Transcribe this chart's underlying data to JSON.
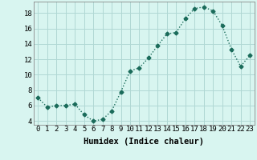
{
  "x": [
    0,
    1,
    2,
    3,
    4,
    5,
    6,
    7,
    8,
    9,
    10,
    11,
    12,
    13,
    14,
    15,
    16,
    17,
    18,
    19,
    20,
    21,
    22,
    23
  ],
  "y": [
    7.0,
    5.8,
    6.0,
    6.0,
    6.2,
    4.8,
    4.0,
    4.2,
    5.3,
    7.8,
    10.5,
    10.9,
    12.2,
    13.8,
    15.3,
    15.5,
    17.3,
    18.6,
    18.8,
    18.3,
    16.4,
    13.3,
    11.1,
    12.5
  ],
  "line_color": "#1a6b5a",
  "marker": "D",
  "marker_size": 2.5,
  "bg_color": "#d8f5f0",
  "grid_color": "#b0d8d4",
  "xlabel": "Humidex (Indice chaleur)",
  "xlim": [
    -0.5,
    23.5
  ],
  "ylim": [
    3.5,
    19.5
  ],
  "yticks": [
    4,
    6,
    8,
    10,
    12,
    14,
    16,
    18
  ],
  "xticks": [
    0,
    1,
    2,
    3,
    4,
    5,
    6,
    7,
    8,
    9,
    10,
    11,
    12,
    13,
    14,
    15,
    16,
    17,
    18,
    19,
    20,
    21,
    22,
    23
  ],
  "line_width": 1.0,
  "xlabel_fontsize": 7.5,
  "tick_fontsize": 6.5
}
